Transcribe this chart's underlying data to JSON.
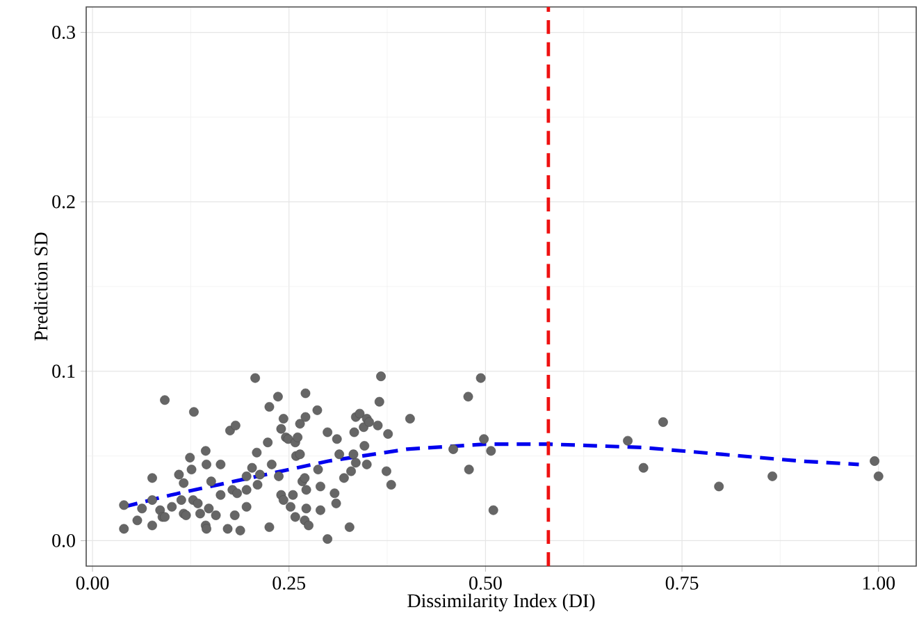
{
  "chart_data": {
    "type": "scatter",
    "xlabel": "Dissimilarity Index (DI)",
    "ylabel": "Prediction SD",
    "xlim": [
      -0.008,
      1.048
    ],
    "ylim": [
      -0.015,
      0.315
    ],
    "xticks": [
      {
        "value": 0,
        "label": "0.00"
      },
      {
        "value": 0.25,
        "label": "0.25"
      },
      {
        "value": 0.5,
        "label": "0.50"
      },
      {
        "value": 0.75,
        "label": "0.75"
      },
      {
        "value": 1,
        "label": "1.00"
      }
    ],
    "yticks": [
      {
        "value": 0,
        "label": "0.0"
      },
      {
        "value": 0.1,
        "label": "0.1"
      },
      {
        "value": 0.2,
        "label": "0.2"
      },
      {
        "value": 0.3,
        "label": "0.3"
      }
    ],
    "grid": true,
    "series": [
      {
        "color": "#666666",
        "marker": "circle",
        "x": [
          0.04,
          0.04,
          0.057,
          0.063,
          0.076,
          0.076,
          0.076,
          0.086,
          0.089,
          0.092,
          0.092,
          0.101,
          0.11,
          0.113,
          0.116,
          0.116,
          0.119,
          0.124,
          0.126,
          0.128,
          0.129,
          0.134,
          0.137,
          0.144,
          0.144,
          0.145,
          0.145,
          0.148,
          0.151,
          0.157,
          0.163,
          0.163,
          0.172,
          0.175,
          0.178,
          0.181,
          0.182,
          0.184,
          0.188,
          0.196,
          0.196,
          0.196,
          0.203,
          0.207,
          0.209,
          0.21,
          0.213,
          0.223,
          0.225,
          0.225,
          0.228,
          0.236,
          0.237,
          0.24,
          0.24,
          0.243,
          0.243,
          0.246,
          0.249,
          0.252,
          0.255,
          0.258,
          0.258,
          0.259,
          0.261,
          0.264,
          0.264,
          0.267,
          0.27,
          0.27,
          0.271,
          0.271,
          0.272,
          0.275,
          0.272,
          0.286,
          0.287,
          0.29,
          0.29,
          0.299,
          0.299,
          0.308,
          0.31,
          0.311,
          0.314,
          0.32,
          0.335,
          0.332,
          0.333,
          0.327,
          0.329,
          0.335,
          0.34,
          0.345,
          0.346,
          0.349,
          0.349,
          0.352,
          0.363,
          0.365,
          0.367,
          0.374,
          0.376,
          0.38,
          0.404,
          0.459,
          0.478,
          0.479,
          0.494,
          0.498,
          0.507,
          0.51,
          0.681,
          0.701,
          0.726,
          0.797,
          0.865,
          0.995,
          1.0
        ],
        "values": [
          0.021,
          0.007,
          0.012,
          0.019,
          0.037,
          0.024,
          0.009,
          0.018,
          0.014,
          0.083,
          0.014,
          0.02,
          0.039,
          0.024,
          0.034,
          0.016,
          0.015,
          0.049,
          0.042,
          0.024,
          0.076,
          0.022,
          0.016,
          0.053,
          0.009,
          0.045,
          0.007,
          0.019,
          0.035,
          0.015,
          0.045,
          0.027,
          0.007,
          0.065,
          0.03,
          0.015,
          0.068,
          0.028,
          0.006,
          0.02,
          0.03,
          0.038,
          0.043,
          0.096,
          0.052,
          0.033,
          0.039,
          0.058,
          0.008,
          0.079,
          0.045,
          0.085,
          0.038,
          0.027,
          0.066,
          0.072,
          0.024,
          0.061,
          0.06,
          0.02,
          0.027,
          0.014,
          0.058,
          0.05,
          0.061,
          0.051,
          0.069,
          0.035,
          0.037,
          0.012,
          0.087,
          0.073,
          0.019,
          0.009,
          0.03,
          0.077,
          0.042,
          0.032,
          0.018,
          0.064,
          0.001,
          0.028,
          0.022,
          0.06,
          0.051,
          0.037,
          0.073,
          0.051,
          0.064,
          0.008,
          0.041,
          0.046,
          0.075,
          0.067,
          0.056,
          0.045,
          0.072,
          0.07,
          0.068,
          0.082,
          0.097,
          0.041,
          0.063,
          0.033,
          0.072,
          0.054,
          0.085,
          0.042,
          0.096,
          0.06,
          0.053,
          0.018,
          0.059,
          0.043,
          0.07,
          0.032,
          0.038,
          0.047,
          0.038
        ]
      },
      {
        "type": "line",
        "color": "#0000ee",
        "marker": "none",
        "line_style": "dashed",
        "x": [
          0.04,
          0.1,
          0.2,
          0.3,
          0.4,
          0.5,
          0.58,
          0.7,
          0.8,
          0.9,
          0.975
        ],
        "values": [
          0.02,
          0.027,
          0.037,
          0.047,
          0.054,
          0.057,
          0.057,
          0.055,
          0.051,
          0.047,
          0.045
        ]
      }
    ],
    "ref_lines": [
      {
        "axis": "x",
        "value": 0.58,
        "color": "#ee1111",
        "line_style": "dashed"
      }
    ]
  }
}
